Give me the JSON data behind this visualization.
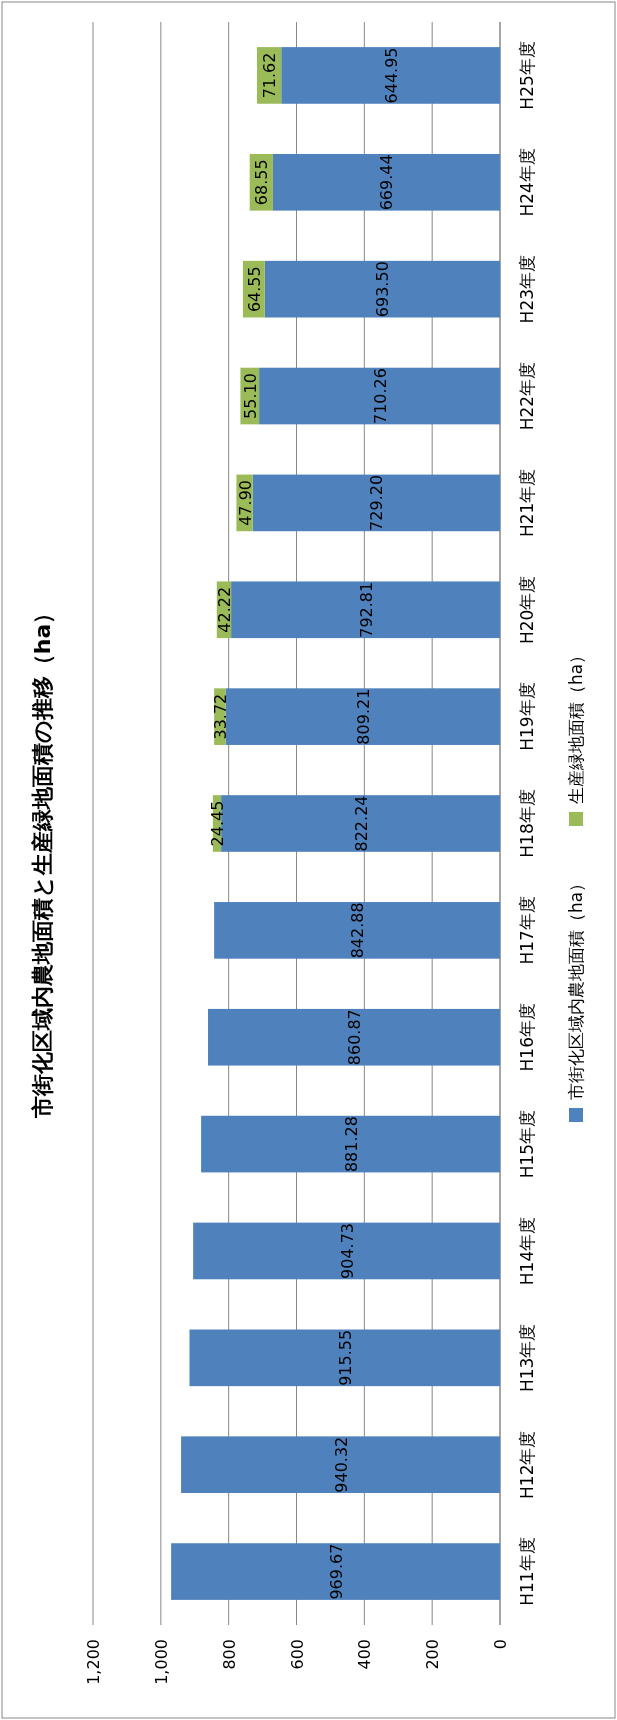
{
  "chart_data": {
    "type": "bar",
    "stacked": true,
    "orientation": "horizontal",
    "title": "市街化区域内農地面積と生産緑地面積の推移（ha）",
    "categories": [
      "H25年度",
      "H24年度",
      "H23年度",
      "H22年度",
      "H21年度",
      "H20年度",
      "H19年度",
      "H18年度",
      "H17年度",
      "H16年度",
      "H15年度",
      "H14年度",
      "H13年度",
      "H12年度",
      "H11年度"
    ],
    "series": [
      {
        "name": "市街化区域内農地面積（ha）",
        "color": "#4f81bd",
        "values": [
          644.95,
          669.44,
          693.5,
          710.26,
          729.2,
          792.81,
          809.21,
          822.24,
          842.88,
          860.87,
          881.28,
          904.73,
          915.55,
          940.32,
          969.67
        ],
        "value_labels": [
          "644.95",
          "669.44",
          "693.50",
          "710.26",
          "729.20",
          "792.81",
          "809.21",
          "822.24",
          "842.88",
          "860.87",
          "881.28",
          "904.73",
          "915.55",
          "940.32",
          "969.67"
        ]
      },
      {
        "name": "生産緑地面積（ha）",
        "color": "#9bbb59",
        "values": [
          71.62,
          68.55,
          64.55,
          55.1,
          47.9,
          42.22,
          33.72,
          24.45,
          null,
          null,
          null,
          null,
          null,
          null,
          null
        ],
        "value_labels": [
          "71.62",
          "68.55",
          "64.55",
          "55.10",
          "47.90",
          "42.22",
          "33.72",
          "24.45",
          null,
          null,
          null,
          null,
          null,
          null,
          null
        ]
      }
    ],
    "xlim": [
      1200,
      0
    ],
    "xticks": [
      {
        "value": 1200,
        "label": "1,200"
      },
      {
        "value": 1000,
        "label": "1,000"
      },
      800,
      600,
      400,
      200,
      0
    ],
    "grid": "x",
    "legend": "bottom"
  }
}
